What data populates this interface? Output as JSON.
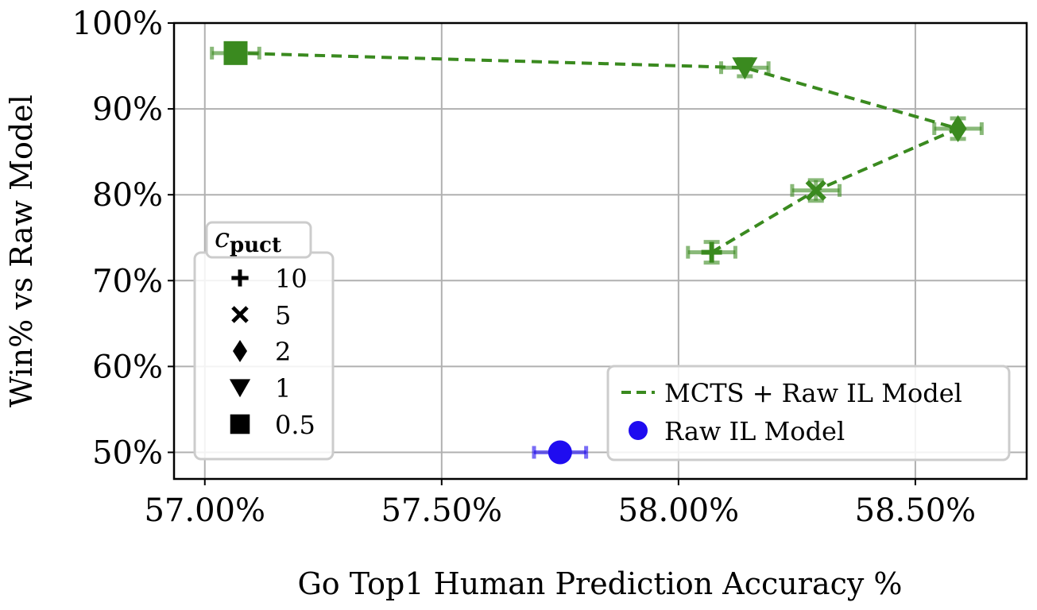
{
  "chart_data": {
    "type": "scatter",
    "xlabel": "Go Top1 Human Prediction Accuracy %",
    "ylabel": "Win% vs Raw Model",
    "xlim": [
      56.935,
      58.735
    ],
    "ylim": [
      46.9,
      100
    ],
    "x_ticks": [
      57.0,
      57.5,
      58.0,
      58.5
    ],
    "x_tick_labels": [
      "57.00%",
      "57.50%",
      "58.00%",
      "58.50%"
    ],
    "y_ticks": [
      50,
      60,
      70,
      80,
      90,
      100
    ],
    "y_tick_labels": [
      "50%",
      "60%",
      "70%",
      "80%",
      "90%",
      "100%"
    ],
    "grid": true,
    "colors": {
      "mcts": "#3a8a1f",
      "raw": "#1f0cf0"
    },
    "series": [
      {
        "name": "MCTS + Raw IL Model",
        "style": "dashed-line-with-markers",
        "points": [
          {
            "cpuct": "10",
            "marker": "plus",
            "x": 58.07,
            "y": 73.3,
            "xerr": 0.05,
            "yerr": 1.2
          },
          {
            "cpuct": "5",
            "marker": "x",
            "x": 58.29,
            "y": 80.5,
            "xerr": 0.05,
            "yerr": 1.2
          },
          {
            "cpuct": "2",
            "marker": "diamond",
            "x": 58.59,
            "y": 87.7,
            "xerr": 0.05,
            "yerr": 1.2
          },
          {
            "cpuct": "1",
            "marker": "triangle-down",
            "x": 58.14,
            "y": 94.8,
            "xerr": 0.05,
            "yerr": 1.0
          },
          {
            "cpuct": "0.5",
            "marker": "square",
            "x": 57.065,
            "y": 96.5,
            "xerr": 0.05,
            "yerr": 1.0
          }
        ]
      },
      {
        "name": "Raw IL Model",
        "style": "marker-only",
        "points": [
          {
            "marker": "circle",
            "x": 57.75,
            "y": 50.0,
            "xerr": 0.055,
            "yerr": 0
          }
        ]
      }
    ],
    "legend_cpuct": {
      "title_main": "c",
      "title_sub": "puct",
      "items": [
        {
          "marker": "plus",
          "label": "10"
        },
        {
          "marker": "x",
          "label": "5"
        },
        {
          "marker": "diamond",
          "label": "2"
        },
        {
          "marker": "triangle-down",
          "label": "1"
        },
        {
          "marker": "square",
          "label": "0.5"
        }
      ]
    },
    "legend_series": [
      {
        "style": "dashed-line",
        "label": "MCTS + Raw IL Model"
      },
      {
        "style": "circle",
        "label": "Raw IL Model"
      }
    ]
  }
}
